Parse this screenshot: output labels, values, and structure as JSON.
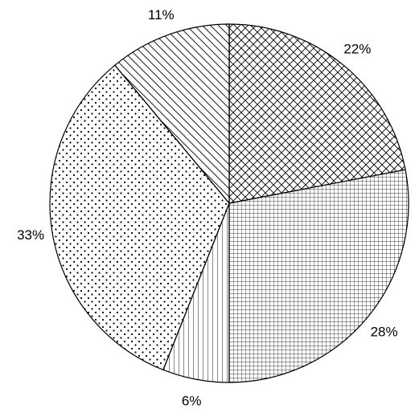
{
  "chart_data": {
    "type": "pie",
    "title": "",
    "slices": [
      {
        "value": 22,
        "label": "22%",
        "pattern": "crosshatch-diagonal"
      },
      {
        "value": 28,
        "label": "28%",
        "pattern": "grid"
      },
      {
        "value": 6,
        "label": "6%",
        "pattern": "vertical-lines"
      },
      {
        "value": 33,
        "label": "33%",
        "pattern": "dots"
      },
      {
        "value": 11,
        "label": "11%",
        "pattern": "diagonal-lines"
      }
    ],
    "start_angle": "12 o'clock",
    "direction": "clockwise",
    "legend": "none",
    "colors": {
      "stroke": "#000000",
      "fill": "#ffffff"
    }
  }
}
